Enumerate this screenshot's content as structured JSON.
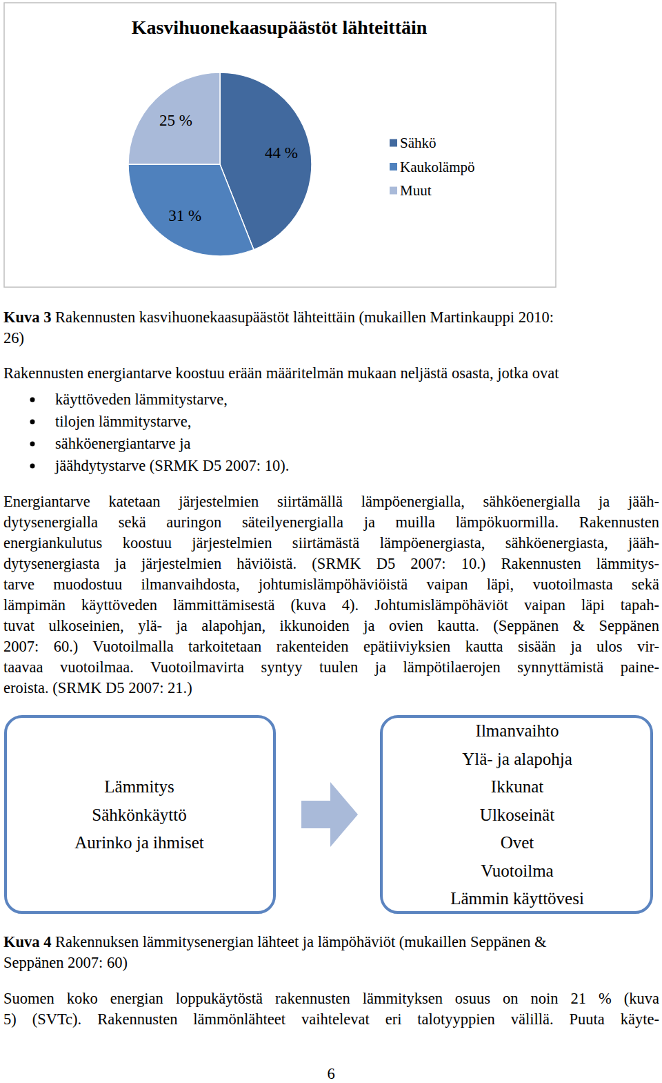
{
  "chart_data": {
    "type": "pie",
    "title": "Kasvihuonekaasupäästöt lähteittäin",
    "categories": [
      "Sähkö",
      "Kaukolämpö",
      "Muut"
    ],
    "values": [
      44,
      31,
      25
    ],
    "value_labels": [
      "44 %",
      "31 %",
      "25 %"
    ],
    "colors": [
      "#41699e",
      "#4f81bd",
      "#a9bad9"
    ],
    "data_labels": true,
    "legend": "right"
  },
  "document": {
    "caption_3": {
      "label": "Kuva 3",
      "lines": [
        "Rakennusten kasvihuonekaasupäästöt lähteittäin (mukaillen Martinkauppi 2010:",
        "26)"
      ]
    },
    "intro": "Rakennusten energiantarve koostuu erään määritelmän mukaan neljästä osasta, jotka ovat",
    "bullets": [
      "käyttöveden lämmitystarve,",
      "tilojen lämmitystarve,",
      "sähköenergiantarve ja",
      "jäähdytystarve (SRMK D5 2007: 10)."
    ],
    "paragraph_1": [
      "Energiantarve katetaan järjestelmien siirtämällä lämpöenergialla, sähköenergialla ja jääh-",
      "dytysenergialla sekä auringon säteilyenergialla ja muilla lämpökuormilla. Rakennusten",
      "energiankulutus koostuu järjestelmien siirtämästä lämpöenergiasta, sähköenergiasta, jääh-",
      "dytysenergiasta ja järjestelmien häviöistä. (SRMK D5 2007: 10.) Rakennusten lämmitys-",
      "tarve muodostuu ilmanvaihdosta, johtumislämpöhäviöistä vaipan läpi, vuotoilmasta sekä",
      "lämpimän käyttöveden lämmittämisestä (kuva 4). Johtumislämpöhäviöt vaipan läpi tapah-",
      "tuvat ulkoseinien, ylä- ja alapohjan, ikkunoiden ja ovien kautta. (Seppänen & Seppänen",
      "2007: 60.) Vuotoilmalla tarkoitetaan rakenteiden epätiiviyksien kautta sisään ja ulos vir-",
      "taavaa vuotoilmaa. Vuotoilmavirta syntyy tuulen ja lämpötilaerojen synnyttämistä paine-",
      "eroista. (SRMK D5 2007: 21.)"
    ],
    "diagram": {
      "left": [
        "Lämmitys",
        "Sähkönkäyttö",
        "Aurinko ja ihmiset"
      ],
      "right": [
        "Ilmanvaihto",
        "Ylä- ja alapohja",
        "Ikkunat",
        "Ulkoseinät",
        "Ovet",
        "Vuotoilma",
        "Lämmin käyttövesi"
      ]
    },
    "caption_4": {
      "label": "Kuva 4",
      "lines": [
        "Rakennuksen lämmitysenergian lähteet ja lämpöhäviöt (mukaillen Seppänen &",
        "Seppänen 2007: 60)"
      ]
    },
    "paragraph_2": [
      "Suomen koko energian loppukäytöstä rakennusten lämmityksen osuus on noin 21 % (kuva",
      "5) (SVTc). Rakennusten lämmönlähteet vaihtelevat eri talotyyppien välillä. Puuta käyte-"
    ],
    "page_number": "6"
  }
}
